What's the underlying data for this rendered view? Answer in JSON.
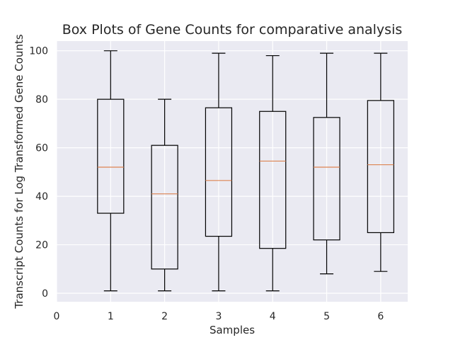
{
  "chart_data": {
    "type": "box",
    "title": "Box Plots of Gene Counts for comparative analysis",
    "xlabel": "Samples",
    "ylabel": "Transcript Counts for Log Transformed Gene Counts",
    "x_ticks": [
      "0",
      "1",
      "2",
      "3",
      "4",
      "5",
      "6"
    ],
    "y_ticks": [
      "0",
      "20",
      "40",
      "60",
      "80",
      "100"
    ],
    "xlim": [
      0,
      6.5
    ],
    "ylim": [
      -3.5,
      104
    ],
    "grid": true,
    "colors": {
      "background": "#eaeaf2",
      "grid": "#ffffff",
      "box": "#000000",
      "median": "#dd8452"
    },
    "boxes": [
      {
        "sample": 1,
        "whislo": 1,
        "q1": 33,
        "med": 52,
        "q3": 80,
        "whishi": 100
      },
      {
        "sample": 2,
        "whislo": 1,
        "q1": 10,
        "med": 41,
        "q3": 61,
        "whishi": 80
      },
      {
        "sample": 3,
        "whislo": 1,
        "q1": 23.5,
        "med": 46.5,
        "q3": 76.5,
        "whishi": 99
      },
      {
        "sample": 4,
        "whislo": 1,
        "q1": 18.5,
        "med": 54.5,
        "q3": 75,
        "whishi": 98
      },
      {
        "sample": 5,
        "whislo": 8,
        "q1": 22,
        "med": 52,
        "q3": 72.5,
        "whishi": 99
      },
      {
        "sample": 6,
        "whislo": 9,
        "q1": 25,
        "med": 53,
        "q3": 79.5,
        "whishi": 99
      }
    ]
  }
}
